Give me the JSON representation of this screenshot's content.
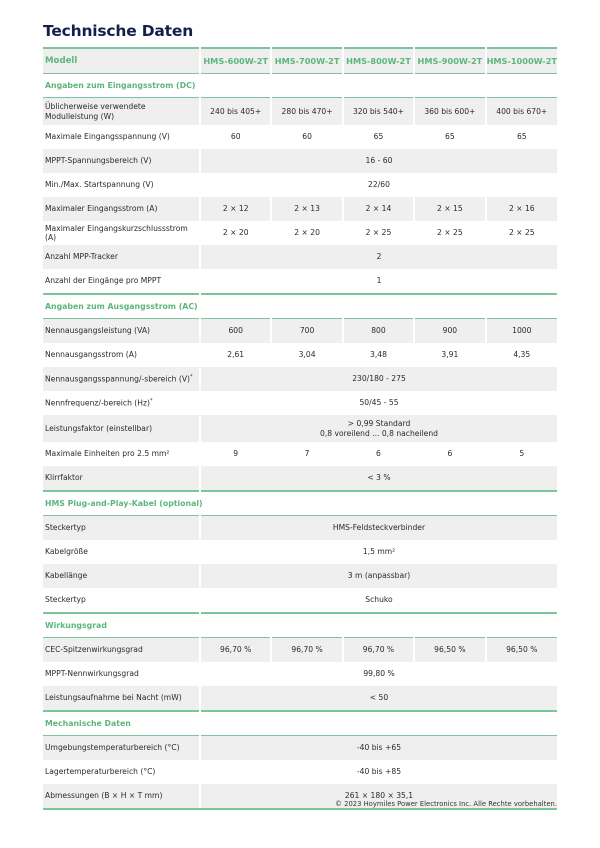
{
  "title": "Technische Daten",
  "header": {
    "label": "Modell",
    "models": [
      "HMS-600W-2T",
      "HMS-700W-2T",
      "HMS-800W-2T",
      "HMS-900W-2T",
      "HMS-1000W-2T"
    ]
  },
  "sections": [
    {
      "title": "Angaben zum Eingangsstrom (DC)",
      "rows": [
        {
          "label": "Üblicherweise verwendete Modulleistung (W)",
          "values": [
            "240 bis 405+",
            "280 bis 470+",
            "320 bis 540+",
            "360 bis 600+",
            "400 bis 670+"
          ]
        },
        {
          "label": "Maximale Eingangsspannung (V)",
          "values": [
            "60",
            "60",
            "65",
            "65",
            "65"
          ]
        },
        {
          "label": "MPPT-Spannungsbereich (V)",
          "span": "16 - 60"
        },
        {
          "label": "Min./Max. Startspannung (V)",
          "span": "22/60"
        },
        {
          "label": "Maximaler Eingangsstrom (A)",
          "values": [
            "2 × 12",
            "2 × 13",
            "2 × 14",
            "2 × 15",
            "2 × 16"
          ]
        },
        {
          "label": "Maximaler Eingangskurzschlussstrom (A)",
          "values": [
            "2 × 20",
            "2 × 20",
            "2 × 25",
            "2 × 25",
            "2 × 25"
          ]
        },
        {
          "label": "Anzahl MPP-Tracker",
          "span": "2"
        },
        {
          "label": "Anzahl der Eingänge pro MPPT",
          "span": "1"
        }
      ]
    },
    {
      "title": "Angaben zum Ausgangsstrom (AC)",
      "rows": [
        {
          "label": "Nennausgangsleistung (VA)",
          "values": [
            "600",
            "700",
            "800",
            "900",
            "1000"
          ]
        },
        {
          "label": "Nennausgangsstrom (A)",
          "values": [
            "2,61",
            "3,04",
            "3,48",
            "3,91",
            "4,35"
          ]
        },
        {
          "label": "Nennausgangsspannung/-sbereich (V)",
          "note": "*",
          "span": "230/180 - 275"
        },
        {
          "label": "Nennfrequenz/-bereich (Hz)",
          "note": "*",
          "span": "50/45 - 55"
        },
        {
          "label": "Leistungsfaktor (einstellbar)",
          "span": "> 0,99 Standard",
          "span2": "0,8 voreilend ... 0,8 nacheilend"
        },
        {
          "label": "Maximale Einheiten pro 2.5 mm²",
          "values": [
            "9",
            "7",
            "6",
            "6",
            "5"
          ]
        },
        {
          "label": "Klirrfaktor",
          "span": "< 3 %"
        }
      ]
    },
    {
      "title": "HMS Plug-and-Play-Kabel (optional)",
      "rows": [
        {
          "label": "Steckertyp",
          "span": "HMS-Feldsteckverbinder"
        },
        {
          "label": "Kabelgröße",
          "span": "1,5 mm²"
        },
        {
          "label": "Kabellänge",
          "span": "3 m (anpassbar)"
        },
        {
          "label": "Steckertyp",
          "span": "Schuko"
        }
      ]
    },
    {
      "title": "Wirkungsgrad",
      "rows": [
        {
          "label": "CEC-Spitzenwirkungsgrad",
          "values": [
            "96,70 %",
            "96,70 %",
            "96,70 %",
            "96,50 %",
            "96,50 %"
          ]
        },
        {
          "label": "MPPT-Nennwirkungsgrad",
          "span": "99,80 %"
        },
        {
          "label": "Leistungsaufnahme bei Nacht (mW)",
          "span": "< 50"
        }
      ]
    },
    {
      "title": "Mechanische Daten",
      "rows": [
        {
          "label": "Umgebungstemperaturbereich (°C)",
          "span": "-40 bis +65"
        },
        {
          "label": "Lagertemperaturbereich (°C)",
          "span": "-40 bis +85"
        },
        {
          "label": "Abmessungen (B × H × T mm)",
          "span": "261 × 180 × 35,1"
        }
      ]
    }
  ],
  "footer": "© 2023 Hoymiles Power Electronics Inc. Alle Rechte vorbehalten.",
  "colors": {
    "accent_green": "#5db67c",
    "rule_green": "#7cc49b",
    "title_navy": "#14204a",
    "row_shade": "#efefef"
  }
}
